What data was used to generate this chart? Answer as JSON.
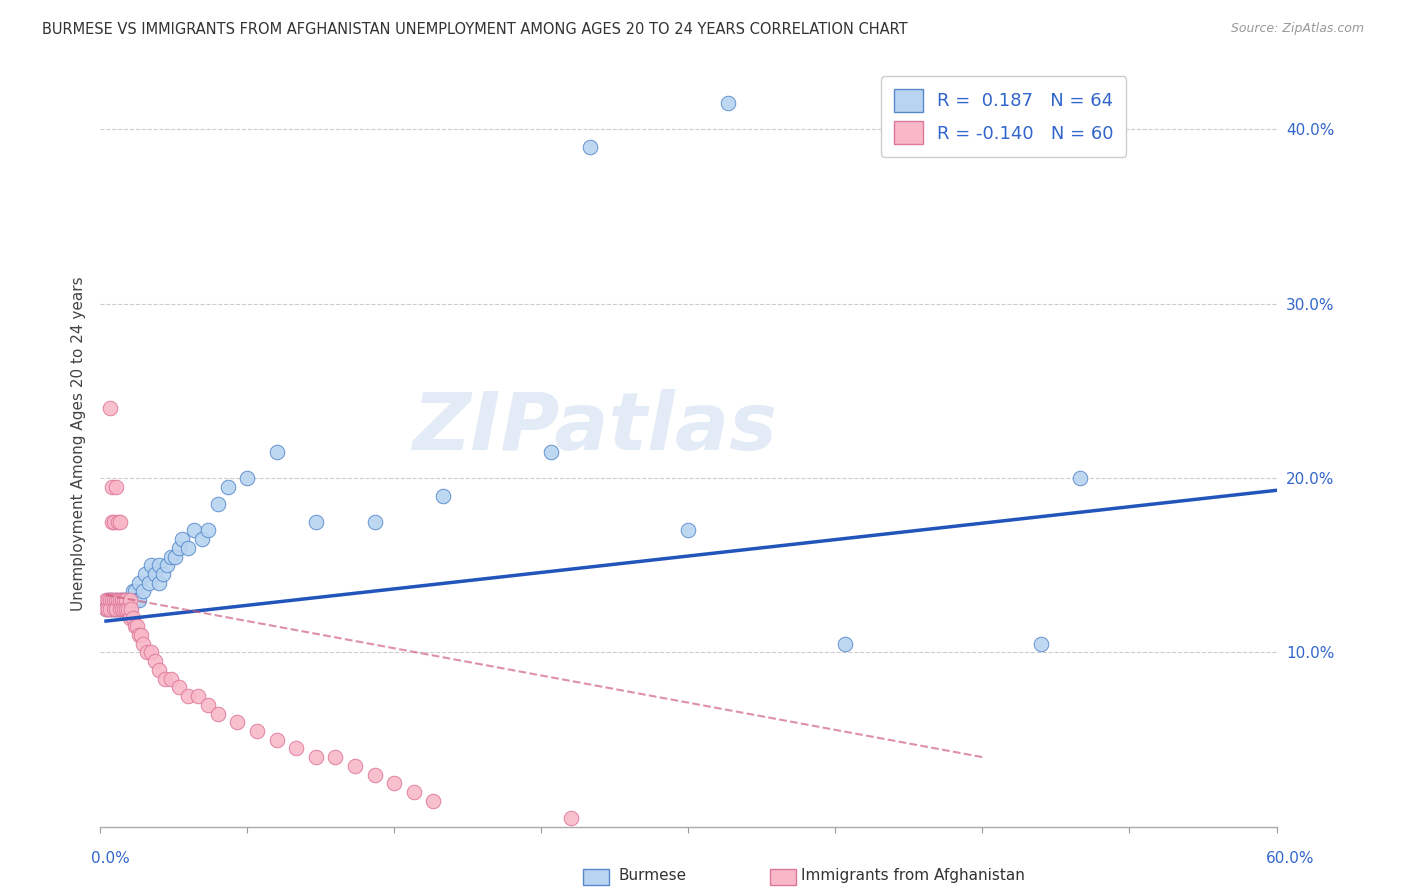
{
  "title": "BURMESE VS IMMIGRANTS FROM AFGHANISTAN UNEMPLOYMENT AMONG AGES 20 TO 24 YEARS CORRELATION CHART",
  "source": "Source: ZipAtlas.com",
  "ylabel": "Unemployment Among Ages 20 to 24 years",
  "ytick_labels": [
    "10.0%",
    "20.0%",
    "30.0%",
    "40.0%"
  ],
  "ytick_values": [
    0.1,
    0.2,
    0.3,
    0.4
  ],
  "xlim": [
    0.0,
    0.6
  ],
  "ylim": [
    0.0,
    0.44
  ],
  "watermark_text": "ZIPatlas",
  "legend_blue_R": "0.187",
  "legend_blue_N": "64",
  "legend_pink_R": "-0.140",
  "legend_pink_N": "60",
  "color_blue_fill": "#b8d4f0",
  "color_pink_fill": "#f8b8c8",
  "color_blue_edge": "#5588cc",
  "color_pink_edge": "#dd7799",
  "color_blue_line": "#2255bb",
  "color_pink_line": "#cc5577",
  "color_blue_text": "#3366cc",
  "background": "#ffffff",
  "blue_x": [
    0.003,
    0.004,
    0.004,
    0.005,
    0.005,
    0.006,
    0.006,
    0.007,
    0.007,
    0.008,
    0.008,
    0.009,
    0.009,
    0.01,
    0.01,
    0.01,
    0.011,
    0.011,
    0.012,
    0.012,
    0.013,
    0.013,
    0.014,
    0.014,
    0.015,
    0.015,
    0.016,
    0.017,
    0.018,
    0.018,
    0.019,
    0.02,
    0.02,
    0.022,
    0.023,
    0.025,
    0.026,
    0.028,
    0.03,
    0.03,
    0.032,
    0.034,
    0.036,
    0.038,
    0.04,
    0.042,
    0.045,
    0.048,
    0.052,
    0.055,
    0.06,
    0.065,
    0.075,
    0.09,
    0.11,
    0.14,
    0.175,
    0.23,
    0.3,
    0.38,
    0.48,
    0.5,
    0.25,
    0.32
  ],
  "blue_y": [
    0.125,
    0.13,
    0.125,
    0.125,
    0.13,
    0.125,
    0.13,
    0.125,
    0.128,
    0.125,
    0.13,
    0.125,
    0.128,
    0.125,
    0.128,
    0.13,
    0.125,
    0.13,
    0.125,
    0.13,
    0.125,
    0.13,
    0.125,
    0.13,
    0.125,
    0.13,
    0.13,
    0.135,
    0.13,
    0.135,
    0.13,
    0.13,
    0.14,
    0.135,
    0.145,
    0.14,
    0.15,
    0.145,
    0.14,
    0.15,
    0.145,
    0.15,
    0.155,
    0.155,
    0.16,
    0.165,
    0.16,
    0.17,
    0.165,
    0.17,
    0.185,
    0.195,
    0.2,
    0.215,
    0.175,
    0.175,
    0.19,
    0.215,
    0.17,
    0.105,
    0.105,
    0.2,
    0.39,
    0.415
  ],
  "pink_x": [
    0.003,
    0.003,
    0.004,
    0.004,
    0.005,
    0.005,
    0.005,
    0.006,
    0.006,
    0.006,
    0.007,
    0.007,
    0.007,
    0.008,
    0.008,
    0.008,
    0.009,
    0.009,
    0.01,
    0.01,
    0.01,
    0.011,
    0.011,
    0.012,
    0.012,
    0.013,
    0.013,
    0.014,
    0.015,
    0.015,
    0.016,
    0.017,
    0.018,
    0.019,
    0.02,
    0.021,
    0.022,
    0.024,
    0.026,
    0.028,
    0.03,
    0.033,
    0.036,
    0.04,
    0.045,
    0.05,
    0.055,
    0.06,
    0.07,
    0.08,
    0.09,
    0.1,
    0.11,
    0.12,
    0.13,
    0.14,
    0.15,
    0.16,
    0.17,
    0.24
  ],
  "pink_y": [
    0.13,
    0.125,
    0.13,
    0.125,
    0.24,
    0.13,
    0.125,
    0.195,
    0.175,
    0.13,
    0.175,
    0.13,
    0.125,
    0.195,
    0.13,
    0.125,
    0.175,
    0.13,
    0.13,
    0.125,
    0.175,
    0.13,
    0.125,
    0.13,
    0.125,
    0.13,
    0.125,
    0.125,
    0.13,
    0.12,
    0.125,
    0.12,
    0.115,
    0.115,
    0.11,
    0.11,
    0.105,
    0.1,
    0.1,
    0.095,
    0.09,
    0.085,
    0.085,
    0.08,
    0.075,
    0.075,
    0.07,
    0.065,
    0.06,
    0.055,
    0.05,
    0.045,
    0.04,
    0.04,
    0.035,
    0.03,
    0.025,
    0.02,
    0.015,
    0.005
  ],
  "blue_trend_x": [
    0.003,
    0.6
  ],
  "blue_trend_y": [
    0.118,
    0.193
  ],
  "pink_trend_x": [
    0.003,
    0.45
  ],
  "pink_trend_y": [
    0.133,
    0.04
  ]
}
